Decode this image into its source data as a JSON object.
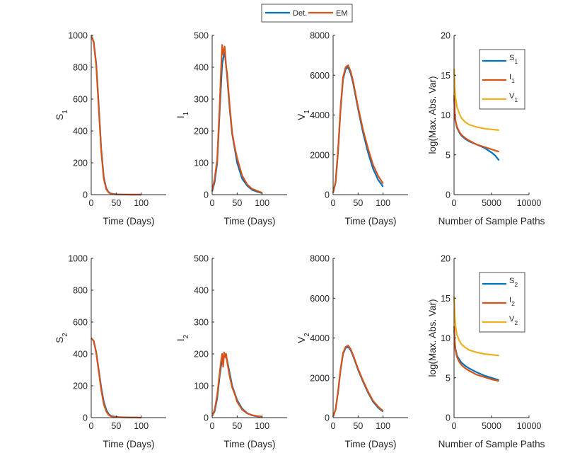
{
  "legend": {
    "items": [
      {
        "name": "Det.",
        "color": "#0072BD"
      },
      {
        "name": "EM",
        "color": "#D95319"
      }
    ]
  },
  "chart_data": [
    {
      "type": "line",
      "row": 1,
      "col": 1,
      "ylabel": "S",
      "ysub": "1",
      "xlabel": "Time (Days)",
      "xlim": [
        0,
        150
      ],
      "ylim": [
        0,
        1000
      ],
      "xticks": [
        0,
        50,
        100
      ],
      "yticks": [
        0,
        200,
        400,
        600,
        800,
        1000
      ],
      "series": [
        {
          "name": "Det.",
          "color": "#0072BD",
          "x": [
            0,
            5,
            10,
            15,
            20,
            25,
            30,
            35,
            40,
            50,
            60,
            80,
            100
          ],
          "y": [
            1000,
            960,
            820,
            560,
            290,
            110,
            40,
            15,
            6,
            2,
            1,
            0,
            0
          ]
        },
        {
          "name": "EM",
          "color": "#D95319",
          "x": [
            0,
            5,
            10,
            15,
            20,
            25,
            30,
            35,
            40,
            50,
            60,
            80,
            100
          ],
          "y": [
            1000,
            955,
            810,
            545,
            275,
            100,
            35,
            13,
            5,
            2,
            1,
            0,
            0
          ]
        }
      ]
    },
    {
      "type": "line",
      "row": 1,
      "col": 2,
      "ylabel": "I",
      "ysub": "1",
      "xlabel": "Time (Days)",
      "xlim": [
        0,
        150
      ],
      "ylim": [
        0,
        500
      ],
      "xticks": [
        0,
        50,
        100
      ],
      "yticks": [
        0,
        100,
        200,
        300,
        400,
        500
      ],
      "series": [
        {
          "name": "Det.",
          "color": "#0072BD",
          "x": [
            0,
            5,
            10,
            15,
            20,
            25,
            30,
            35,
            40,
            50,
            60,
            70,
            80,
            90,
            100
          ],
          "y": [
            10,
            40,
            100,
            260,
            410,
            450,
            370,
            270,
            190,
            100,
            50,
            28,
            15,
            9,
            5
          ]
        },
        {
          "name": "EM",
          "color": "#D95319",
          "x": [
            0,
            5,
            10,
            15,
            18,
            20,
            22,
            25,
            28,
            30,
            35,
            40,
            45,
            50,
            60,
            70,
            80,
            90,
            100
          ],
          "y": [
            12,
            50,
            110,
            280,
            400,
            470,
            440,
            465,
            400,
            380,
            280,
            195,
            150,
            115,
            60,
            32,
            18,
            12,
            6
          ]
        }
      ]
    },
    {
      "type": "line",
      "row": 1,
      "col": 3,
      "ylabel": "V",
      "ysub": "1",
      "xlabel": "Time (Days)",
      "xlim": [
        0,
        150
      ],
      "ylim": [
        0,
        8000
      ],
      "xticks": [
        0,
        50,
        100
      ],
      "yticks": [
        0,
        2000,
        4000,
        6000,
        8000
      ],
      "series": [
        {
          "name": "Det.",
          "color": "#0072BD",
          "x": [
            0,
            5,
            10,
            15,
            20,
            25,
            30,
            35,
            40,
            50,
            60,
            70,
            80,
            90,
            100
          ],
          "y": [
            100,
            600,
            2200,
            4300,
            5800,
            6300,
            6400,
            6100,
            5600,
            4300,
            3100,
            2100,
            1300,
            750,
            400
          ]
        },
        {
          "name": "EM",
          "color": "#D95319",
          "x": [
            0,
            5,
            10,
            15,
            20,
            25,
            30,
            35,
            40,
            50,
            60,
            70,
            80,
            90,
            100
          ],
          "y": [
            100,
            650,
            2300,
            4400,
            5900,
            6400,
            6500,
            6200,
            5700,
            4400,
            3250,
            2300,
            1500,
            950,
            550
          ]
        }
      ]
    },
    {
      "type": "line",
      "row": 1,
      "col": 4,
      "ylabel": "log(Max. Abs. Var)",
      "ysub": "",
      "xlabel": "Number of Sample Paths",
      "xlim": [
        0,
        10000
      ],
      "ylim": [
        0,
        20
      ],
      "xticks": [
        0,
        5000,
        10000
      ],
      "yticks": [
        0,
        5,
        10,
        15,
        20
      ],
      "legend": [
        {
          "label": "S",
          "sub": "1",
          "color": "#0072BD"
        },
        {
          "label": "I",
          "sub": "1",
          "color": "#D95319"
        },
        {
          "label": "V",
          "sub": "1",
          "color": "#EDB120"
        }
      ],
      "series": [
        {
          "name": "S1",
          "color": "#0072BD",
          "x": [
            20,
            100,
            200,
            400,
            700,
            1000,
            1500,
            2000,
            3000,
            4000,
            5000,
            5500,
            6000
          ],
          "y": [
            12,
            10,
            9.2,
            8.4,
            7.8,
            7.4,
            7.0,
            6.7,
            6.3,
            5.9,
            5.3,
            4.9,
            4.3
          ]
        },
        {
          "name": "I1",
          "color": "#D95319",
          "x": [
            20,
            100,
            200,
            400,
            700,
            1000,
            1500,
            2000,
            3000,
            4000,
            5000,
            6000
          ],
          "y": [
            12.5,
            10.3,
            9.3,
            8.5,
            7.9,
            7.5,
            7.1,
            6.8,
            6.3,
            6.0,
            5.7,
            5.4
          ]
        },
        {
          "name": "V1",
          "color": "#EDB120",
          "x": [
            20,
            100,
            200,
            400,
            700,
            1000,
            1500,
            2000,
            3000,
            4000,
            5000,
            6000
          ],
          "y": [
            15.8,
            13.5,
            12.2,
            11.0,
            10.2,
            9.6,
            9.1,
            8.8,
            8.5,
            8.3,
            8.2,
            8.1
          ]
        }
      ]
    },
    {
      "type": "line",
      "row": 2,
      "col": 1,
      "ylabel": "S",
      "ysub": "2",
      "xlabel": "Time (Days)",
      "xlim": [
        0,
        150
      ],
      "ylim": [
        0,
        1000
      ],
      "xticks": [
        0,
        50,
        100
      ],
      "yticks": [
        0,
        200,
        400,
        600,
        800,
        1000
      ],
      "series": [
        {
          "name": "Det.",
          "color": "#0072BD",
          "x": [
            0,
            5,
            10,
            15,
            20,
            25,
            30,
            35,
            40,
            50,
            60,
            80,
            100
          ],
          "y": [
            500,
            480,
            410,
            300,
            190,
            100,
            50,
            22,
            10,
            4,
            2,
            1,
            0
          ]
        },
        {
          "name": "EM",
          "color": "#D95319",
          "x": [
            0,
            5,
            10,
            15,
            20,
            25,
            30,
            35,
            40,
            50,
            60,
            80,
            100
          ],
          "y": [
            500,
            482,
            405,
            290,
            175,
            85,
            40,
            16,
            8,
            3,
            2,
            1,
            0
          ]
        }
      ]
    },
    {
      "type": "line",
      "row": 2,
      "col": 2,
      "ylabel": "I",
      "ysub": "2",
      "xlabel": "Time (Days)",
      "xlim": [
        0,
        150
      ],
      "ylim": [
        0,
        500
      ],
      "xticks": [
        0,
        50,
        100
      ],
      "yticks": [
        0,
        100,
        200,
        300,
        400,
        500
      ],
      "series": [
        {
          "name": "Det.",
          "color": "#0072BD",
          "x": [
            0,
            5,
            10,
            15,
            20,
            25,
            30,
            35,
            40,
            50,
            60,
            70,
            80,
            90,
            100
          ],
          "y": [
            5,
            20,
            60,
            130,
            185,
            200,
            180,
            140,
            100,
            55,
            28,
            14,
            7,
            4,
            2
          ]
        },
        {
          "name": "EM",
          "color": "#D95319",
          "x": [
            0,
            5,
            10,
            15,
            18,
            20,
            22,
            24,
            26,
            28,
            30,
            35,
            40,
            45,
            50,
            60,
            70,
            80,
            90,
            100
          ],
          "y": [
            5,
            25,
            70,
            140,
            180,
            200,
            160,
            205,
            190,
            200,
            175,
            130,
            95,
            75,
            50,
            25,
            13,
            8,
            5,
            3
          ]
        }
      ]
    },
    {
      "type": "line",
      "row": 2,
      "col": 3,
      "ylabel": "V",
      "ysub": "2",
      "xlabel": "Time (Days)",
      "xlim": [
        0,
        150
      ],
      "ylim": [
        0,
        8000
      ],
      "xticks": [
        0,
        50,
        100
      ],
      "yticks": [
        0,
        2000,
        4000,
        6000,
        8000
      ],
      "series": [
        {
          "name": "Det.",
          "color": "#0072BD",
          "x": [
            0,
            5,
            10,
            15,
            20,
            25,
            30,
            35,
            40,
            50,
            60,
            70,
            80,
            90,
            100
          ],
          "y": [
            50,
            400,
            1300,
            2400,
            3200,
            3500,
            3550,
            3400,
            3100,
            2400,
            1800,
            1250,
            800,
            500,
            300
          ]
        },
        {
          "name": "EM",
          "color": "#D95319",
          "x": [
            0,
            5,
            10,
            15,
            20,
            25,
            30,
            35,
            40,
            50,
            60,
            70,
            80,
            90,
            100
          ],
          "y": [
            50,
            420,
            1350,
            2450,
            3250,
            3550,
            3620,
            3450,
            3150,
            2450,
            1850,
            1300,
            850,
            550,
            330
          ]
        }
      ]
    },
    {
      "type": "line",
      "row": 2,
      "col": 4,
      "ylabel": "log(Max. Abs. Var)",
      "ysub": "",
      "xlabel": "Number of Sample Paths",
      "xlim": [
        0,
        10000
      ],
      "ylim": [
        0,
        20
      ],
      "xticks": [
        0,
        5000,
        10000
      ],
      "yticks": [
        0,
        5,
        10,
        15,
        20
      ],
      "legend": [
        {
          "label": "S",
          "sub": "2",
          "color": "#0072BD"
        },
        {
          "label": "I",
          "sub": "2",
          "color": "#D95319"
        },
        {
          "label": "V",
          "sub": "2",
          "color": "#EDB120"
        }
      ],
      "series": [
        {
          "name": "S2",
          "color": "#0072BD",
          "x": [
            20,
            100,
            200,
            400,
            700,
            1000,
            1500,
            2000,
            3000,
            4000,
            5000,
            6000
          ],
          "y": [
            11,
            9.5,
            8.6,
            7.8,
            7.3,
            6.9,
            6.5,
            6.2,
            5.7,
            5.3,
            5.0,
            4.7
          ]
        },
        {
          "name": "I2",
          "color": "#D95319",
          "x": [
            20,
            100,
            200,
            400,
            700,
            1000,
            1500,
            2000,
            3000,
            4000,
            5000,
            6000
          ],
          "y": [
            11.5,
            9.4,
            8.4,
            7.6,
            7.0,
            6.6,
            6.2,
            5.9,
            5.4,
            5.1,
            4.8,
            4.6
          ]
        },
        {
          "name": "V2",
          "color": "#EDB120",
          "x": [
            20,
            100,
            200,
            400,
            700,
            1000,
            1500,
            2000,
            3000,
            4000,
            5000,
            6000
          ],
          "y": [
            15.2,
            12.8,
            11.5,
            10.4,
            9.7,
            9.2,
            8.8,
            8.5,
            8.2,
            8.0,
            7.9,
            7.8
          ]
        }
      ]
    }
  ]
}
